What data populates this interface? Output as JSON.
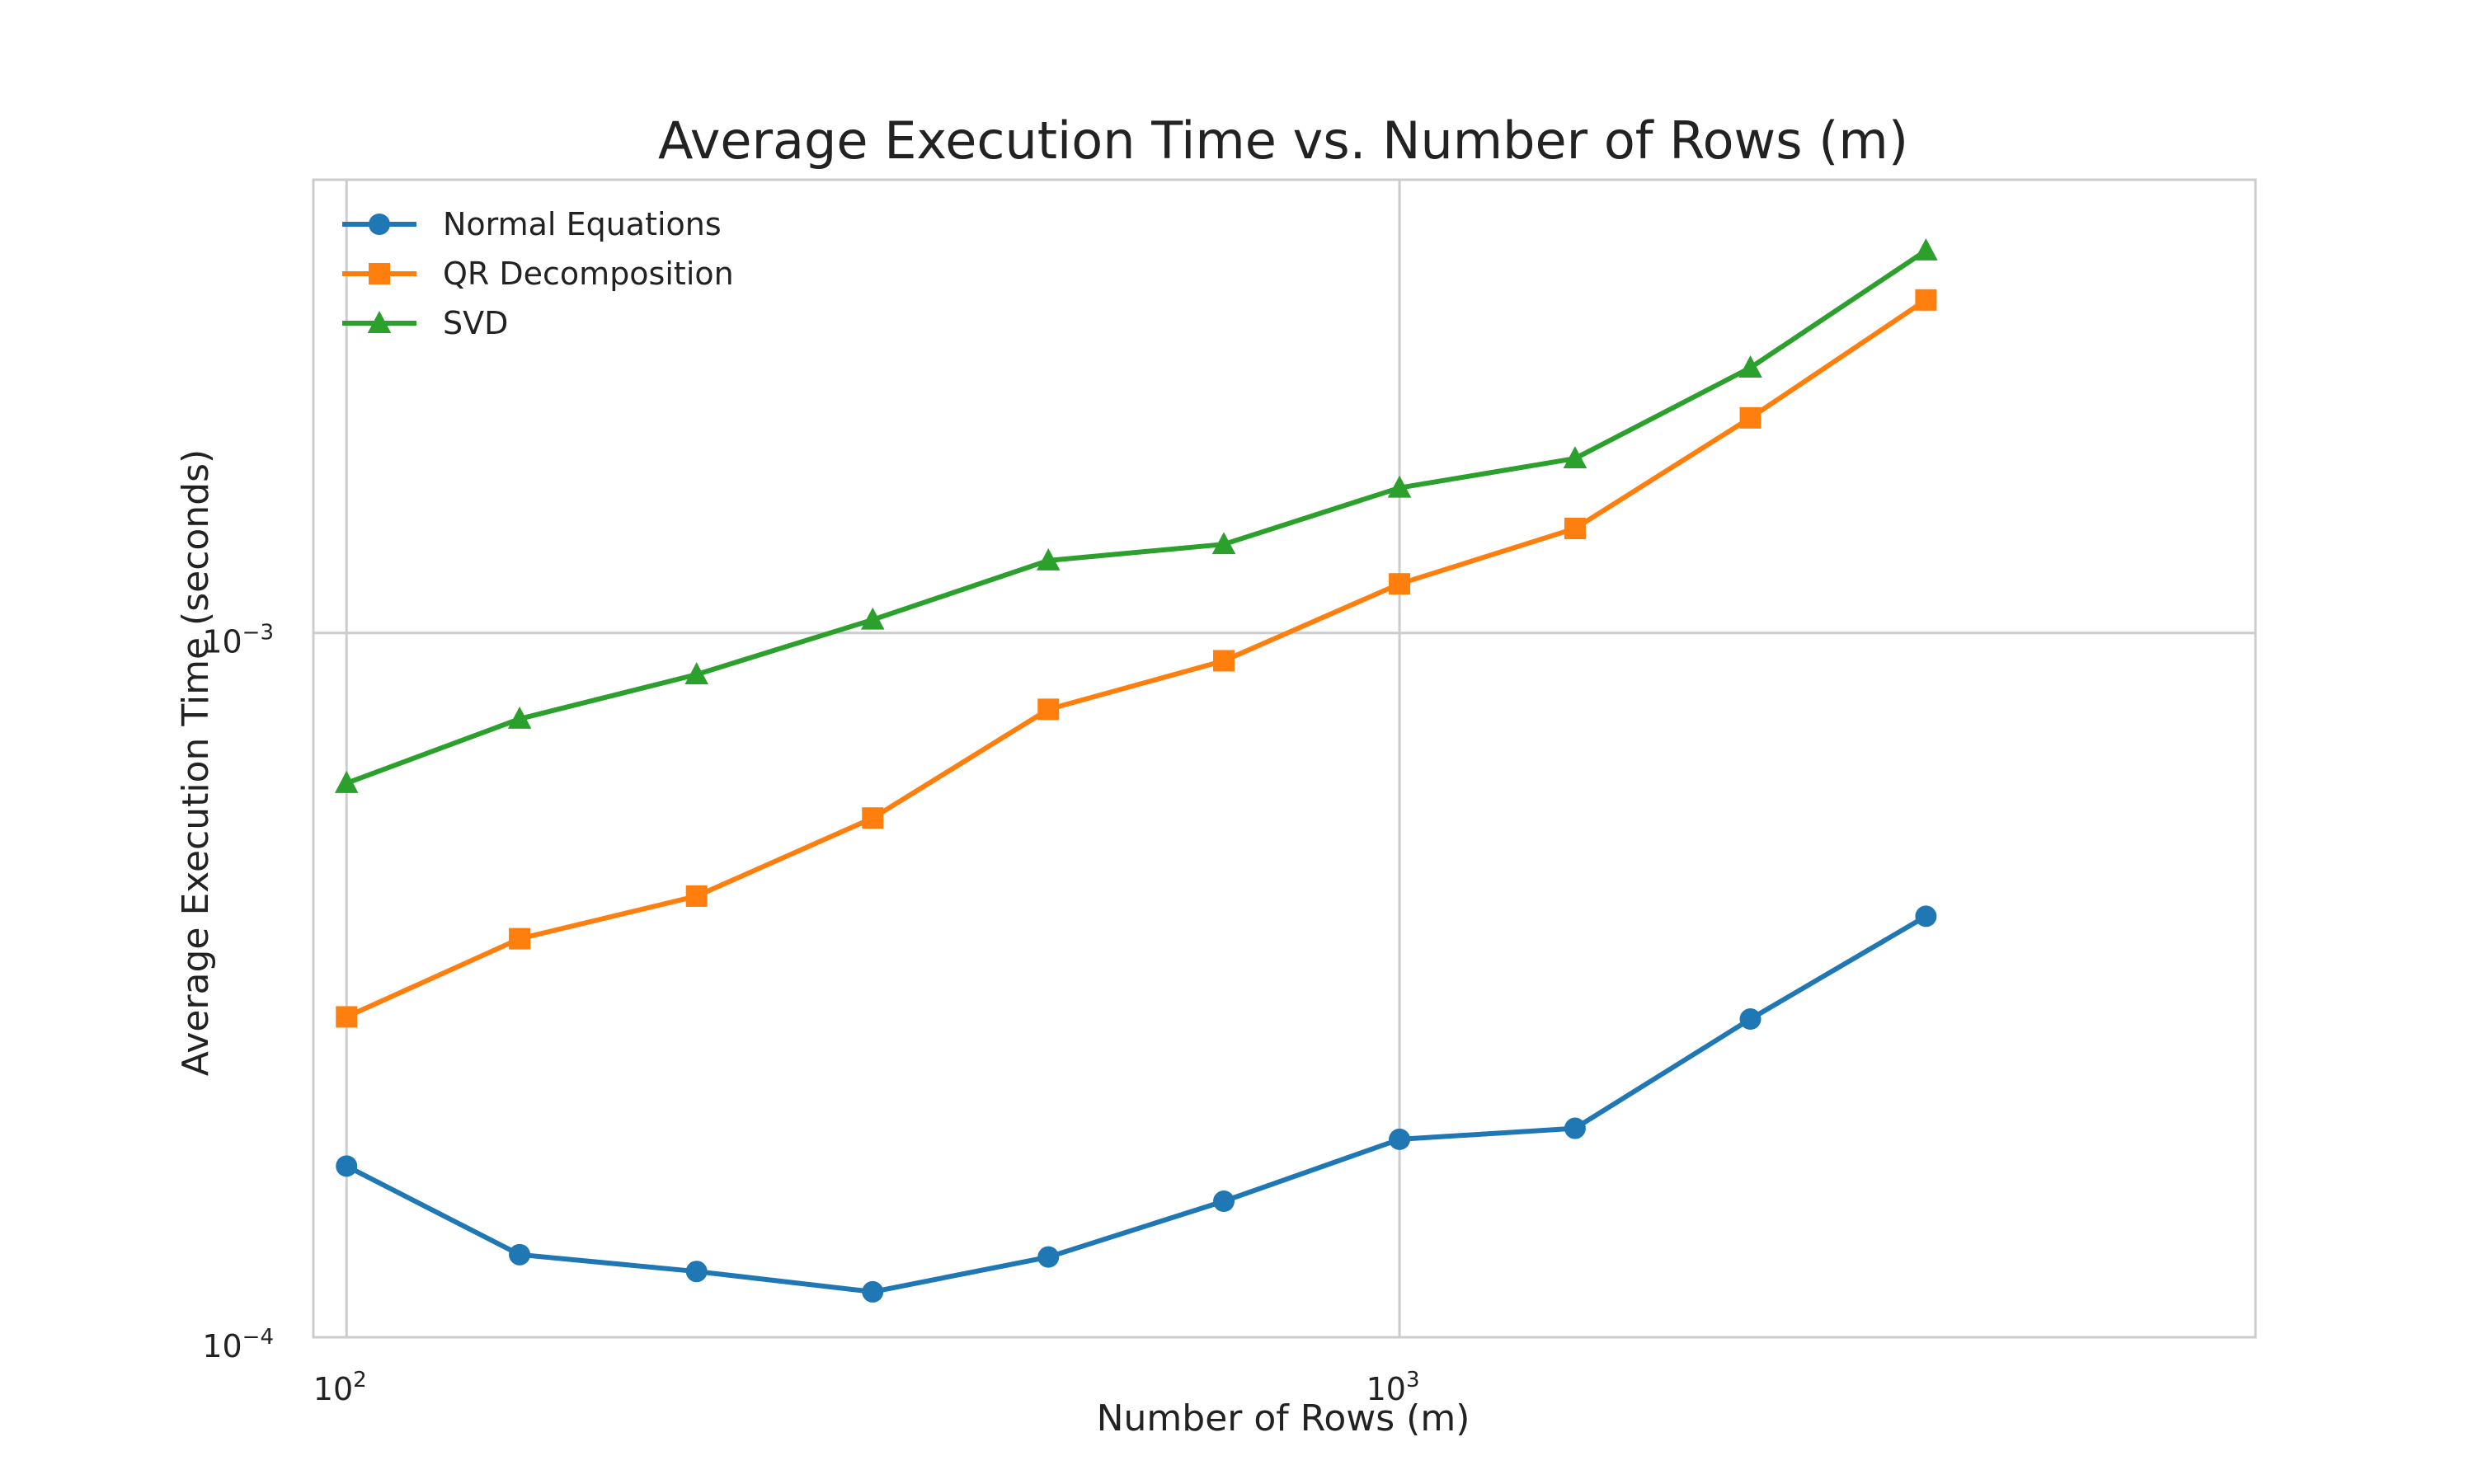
{
  "chart_data": {
    "type": "line",
    "title": "Average Execution Time vs. Number of Rows (m)",
    "xlabel": "Number of Rows (m)",
    "ylabel": "Average Execution Time (seconds)",
    "xscale": "log",
    "yscale": "log",
    "xlim": [
      93,
      6500
    ],
    "ylim": [
      0.0001,
      0.0044
    ],
    "grid": true,
    "legend_position": "top-left",
    "x_ticks": [
      {
        "value": 100,
        "base": "10",
        "exp": "2"
      },
      {
        "value": 1000,
        "base": "10",
        "exp": "3"
      }
    ],
    "y_ticks": [
      {
        "value": 0.0001,
        "base": "10",
        "exp": "−4"
      },
      {
        "value": 0.001,
        "base": "10",
        "exp": "−3"
      }
    ],
    "x": [
      100,
      146,
      215,
      316,
      464,
      681,
      1000,
      1468,
      2154,
      3162
    ],
    "series": [
      {
        "name": "Normal Equations",
        "color": "#1f77b4",
        "marker": "circle",
        "values": [
          0.000175,
          0.000131,
          0.000124,
          0.000116,
          0.00013,
          0.000156,
          0.000191,
          0.000198,
          0.000283,
          0.000396
        ]
      },
      {
        "name": "QR Decomposition",
        "color": "#ff7f0e",
        "marker": "square",
        "values": [
          0.000285,
          0.000368,
          0.000423,
          0.000546,
          0.000779,
          0.000913,
          0.001174,
          0.001407,
          0.00202,
          0.00297
        ]
      },
      {
        "name": "SVD",
        "color": "#2ca02c",
        "marker": "triangle",
        "values": [
          0.000612,
          0.000755,
          0.000873,
          0.001044,
          0.001267,
          0.001336,
          0.001607,
          0.001769,
          0.00238,
          0.00349
        ]
      }
    ]
  }
}
